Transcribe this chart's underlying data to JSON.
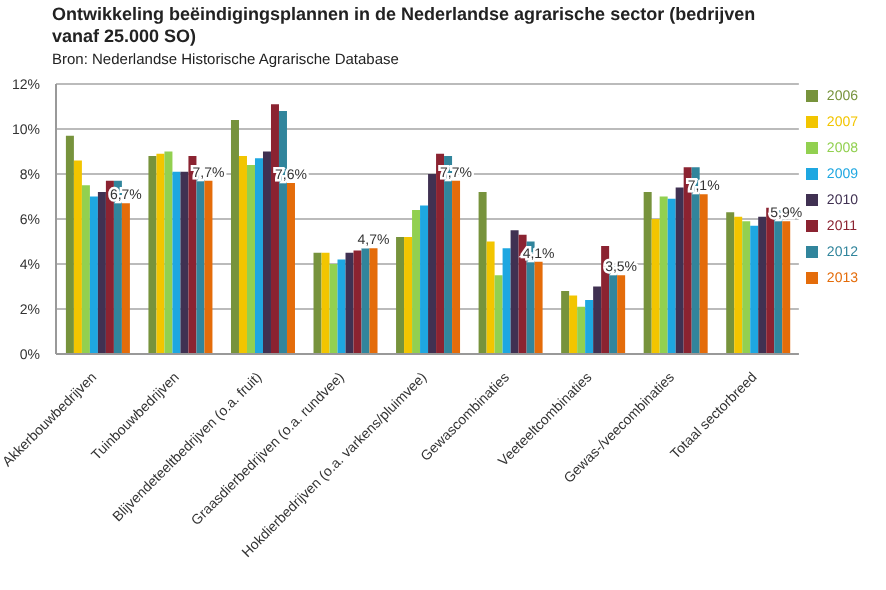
{
  "chart_data": {
    "type": "bar",
    "title": "Ontwikkeling beëindigingsplannen in de Nederlandse agrarische sector (bedrijven vanaf 25.000 SO)",
    "subtitle": "Bron: Nederlandse Historische Agrarische Database",
    "categories": [
      "Akkerbouwbedrijven",
      "Tuinbouwbedrijven",
      "Blijvendeteeltbedrijven (o.a. fruit)",
      "Graasdierbedrijven (o.a. rundvee)",
      "Hokdierbedrijven (o.a. varkens/pluimvee)",
      "Gewascombinaties",
      "Veeteeltcombinaties",
      "Gewas-/veecombinaties",
      "Totaal sectorbreed"
    ],
    "series": [
      {
        "name": "2006",
        "color": "#77933c",
        "values": [
          9.7,
          8.8,
          10.4,
          4.5,
          5.2,
          7.2,
          2.8,
          7.2,
          6.3
        ]
      },
      {
        "name": "2007",
        "color": "#f2c500",
        "values": [
          8.6,
          8.9,
          8.8,
          4.5,
          5.2,
          5.0,
          2.6,
          6.0,
          6.1
        ]
      },
      {
        "name": "2008",
        "color": "#92d050",
        "values": [
          7.5,
          9.0,
          8.4,
          4.0,
          6.4,
          3.5,
          2.1,
          7.0,
          5.9
        ]
      },
      {
        "name": "2009",
        "color": "#1ea7e1",
        "values": [
          7.0,
          8.1,
          8.7,
          4.2,
          6.6,
          4.7,
          2.4,
          6.9,
          5.7
        ]
      },
      {
        "name": "2010",
        "color": "#403152",
        "values": [
          7.2,
          8.1,
          9.0,
          4.5,
          8.0,
          5.5,
          3.0,
          7.4,
          6.1
        ]
      },
      {
        "name": "2011",
        "color": "#8b2331",
        "values": [
          7.7,
          8.8,
          11.1,
          4.6,
          8.9,
          5.3,
          4.8,
          8.3,
          6.5
        ]
      },
      {
        "name": "2012",
        "color": "#31859c",
        "values": [
          7.7,
          8.0,
          10.8,
          4.7,
          8.8,
          5.0,
          3.9,
          8.3,
          6.4
        ]
      },
      {
        "name": "2013",
        "color": "#e46c0a",
        "values": [
          6.7,
          7.7,
          7.6,
          4.7,
          7.7,
          4.1,
          3.5,
          7.1,
          5.9
        ],
        "value_labels": [
          "6,7%",
          "7,7%",
          "7,6%",
          "4,7%",
          "7,7%",
          "4,1%",
          "3,5%",
          "7,1%",
          "5,9%"
        ]
      }
    ],
    "ylim": [
      0,
      12
    ],
    "yticks": [
      {
        "value": 0,
        "label": "0%"
      },
      {
        "value": 2,
        "label": "2%"
      },
      {
        "value": 4,
        "label": "4%"
      },
      {
        "value": 6,
        "label": "6%"
      },
      {
        "value": 8,
        "label": "8%"
      },
      {
        "value": 10,
        "label": "10%"
      },
      {
        "value": 12,
        "label": "12%"
      }
    ],
    "grid": "y",
    "legend": "right"
  }
}
